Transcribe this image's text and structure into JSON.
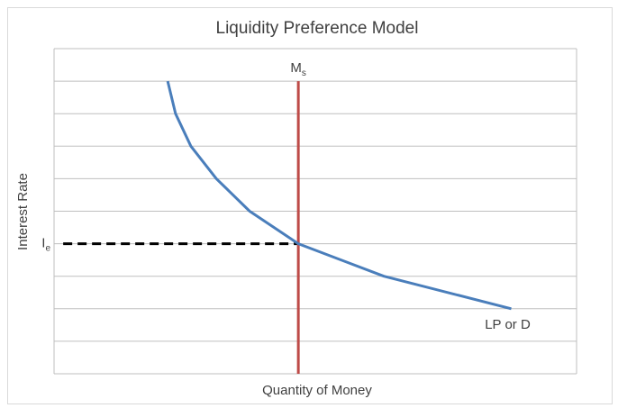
{
  "chart_data": {
    "type": "line",
    "title": "Liquidity Preference Model",
    "x_label": "Quantity of Money",
    "y_label": "Interest Rate",
    "xlim": [
      0,
      16
    ],
    "ylim": [
      0,
      10
    ],
    "yticks": [
      0,
      1,
      2,
      3,
      4,
      5,
      6,
      7,
      8,
      9,
      10
    ],
    "ytick_labels": false,
    "grid": true,
    "series": [
      {
        "name": "LP or D",
        "color": "#4a7ebb",
        "x": [
          3.48,
          3.72,
          4.19,
          4.97,
          5.99,
          7.48,
          10.1,
          14.0
        ],
        "values": [
          9,
          8,
          7,
          6,
          5,
          4,
          3,
          2
        ]
      }
    ],
    "money_supply": {
      "x": 7.48,
      "y_span": [
        0,
        9
      ],
      "color": "#be4b48",
      "label": {
        "main": "M",
        "sub": "s"
      }
    },
    "equilibrium": {
      "y": 4,
      "x_span": [
        0.28,
        7.48
      ],
      "color": "#000000",
      "label": {
        "main": "I",
        "sub": "e"
      }
    }
  }
}
